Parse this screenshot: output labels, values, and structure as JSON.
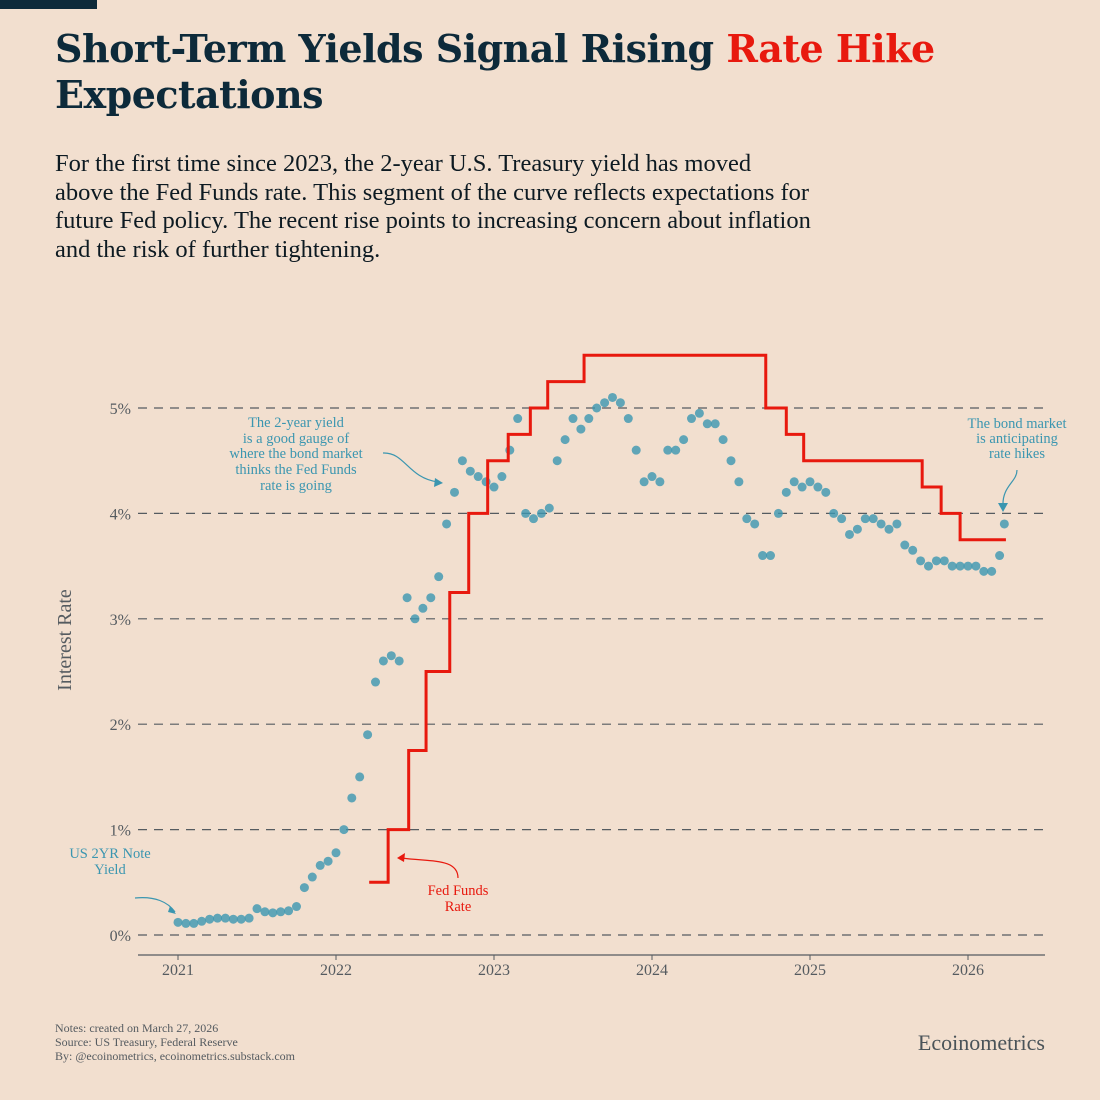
{
  "header": {
    "title_part1": "Short-Term Yields Signal Rising ",
    "title_highlight": "Rate Hike",
    "title_part2": "Expectations",
    "subtitle": "For the first time since 2023, the 2-year U.S. Treasury yield has moved above the Fed Funds rate. This segment of the curve reflects expectations for future Fed policy. The recent rise points to increasing concern about inflation and the risk of further tightening."
  },
  "colors": {
    "background": "#f2dfcf",
    "title": "#0d2a3a",
    "highlight": "#e8190e",
    "yield": "#3b96b0",
    "fed_funds": "#e8190e"
  },
  "chart_data": {
    "type": "scatter+step",
    "ylabel": "Interest Rate",
    "xlabel": "",
    "xlim": [
      2020.8,
      2026.5
    ],
    "ylim": [
      -0.2,
      5.6
    ],
    "x_ticks": [
      "2021",
      "2022",
      "2023",
      "2024",
      "2025",
      "2026"
    ],
    "y_ticks": [
      {
        "v": 0,
        "label": "0%"
      },
      {
        "v": 1,
        "label": "1%"
      },
      {
        "v": 2,
        "label": "2%"
      },
      {
        "v": 3,
        "label": "3%"
      },
      {
        "v": 4,
        "label": "4%"
      },
      {
        "v": 5,
        "label": "5%"
      }
    ],
    "grid": "horizontal dashed",
    "series": [
      {
        "name": "US 2YR Note Yield",
        "type": "scatter",
        "color": "#3b96b0",
        "points": [
          [
            2021.0,
            0.12
          ],
          [
            2021.05,
            0.11
          ],
          [
            2021.1,
            0.11
          ],
          [
            2021.15,
            0.13
          ],
          [
            2021.2,
            0.15
          ],
          [
            2021.25,
            0.16
          ],
          [
            2021.3,
            0.16
          ],
          [
            2021.35,
            0.15
          ],
          [
            2021.4,
            0.15
          ],
          [
            2021.45,
            0.16
          ],
          [
            2021.5,
            0.25
          ],
          [
            2021.55,
            0.22
          ],
          [
            2021.6,
            0.21
          ],
          [
            2021.65,
            0.22
          ],
          [
            2021.7,
            0.23
          ],
          [
            2021.75,
            0.27
          ],
          [
            2021.8,
            0.45
          ],
          [
            2021.85,
            0.55
          ],
          [
            2021.9,
            0.66
          ],
          [
            2021.95,
            0.7
          ],
          [
            2022.0,
            0.78
          ],
          [
            2022.05,
            1.0
          ],
          [
            2022.1,
            1.3
          ],
          [
            2022.15,
            1.5
          ],
          [
            2022.2,
            1.9
          ],
          [
            2022.25,
            2.4
          ],
          [
            2022.3,
            2.6
          ],
          [
            2022.35,
            2.65
          ],
          [
            2022.4,
            2.6
          ],
          [
            2022.45,
            3.2
          ],
          [
            2022.5,
            3.0
          ],
          [
            2022.55,
            3.1
          ],
          [
            2022.6,
            3.2
          ],
          [
            2022.65,
            3.4
          ],
          [
            2022.7,
            3.9
          ],
          [
            2022.75,
            4.2
          ],
          [
            2022.8,
            4.5
          ],
          [
            2022.85,
            4.4
          ],
          [
            2022.9,
            4.35
          ],
          [
            2022.95,
            4.3
          ],
          [
            2023.0,
            4.25
          ],
          [
            2023.05,
            4.35
          ],
          [
            2023.1,
            4.6
          ],
          [
            2023.15,
            4.9
          ],
          [
            2023.2,
            4.0
          ],
          [
            2023.25,
            3.95
          ],
          [
            2023.3,
            4.0
          ],
          [
            2023.35,
            4.05
          ],
          [
            2023.4,
            4.5
          ],
          [
            2023.45,
            4.7
          ],
          [
            2023.5,
            4.9
          ],
          [
            2023.55,
            4.8
          ],
          [
            2023.6,
            4.9
          ],
          [
            2023.65,
            5.0
          ],
          [
            2023.7,
            5.05
          ],
          [
            2023.75,
            5.1
          ],
          [
            2023.8,
            5.05
          ],
          [
            2023.85,
            4.9
          ],
          [
            2023.9,
            4.6
          ],
          [
            2023.95,
            4.3
          ],
          [
            2024.0,
            4.35
          ],
          [
            2024.05,
            4.3
          ],
          [
            2024.1,
            4.6
          ],
          [
            2024.15,
            4.6
          ],
          [
            2024.2,
            4.7
          ],
          [
            2024.25,
            4.9
          ],
          [
            2024.3,
            4.95
          ],
          [
            2024.35,
            4.85
          ],
          [
            2024.4,
            4.85
          ],
          [
            2024.45,
            4.7
          ],
          [
            2024.5,
            4.5
          ],
          [
            2024.55,
            4.3
          ],
          [
            2024.6,
            3.95
          ],
          [
            2024.65,
            3.9
          ],
          [
            2024.7,
            3.6
          ],
          [
            2024.75,
            3.6
          ],
          [
            2024.8,
            4.0
          ],
          [
            2024.85,
            4.2
          ],
          [
            2024.9,
            4.3
          ],
          [
            2024.95,
            4.25
          ],
          [
            2025.0,
            4.3
          ],
          [
            2025.05,
            4.25
          ],
          [
            2025.1,
            4.2
          ],
          [
            2025.15,
            4.0
          ],
          [
            2025.2,
            3.95
          ],
          [
            2025.25,
            3.8
          ],
          [
            2025.3,
            3.85
          ],
          [
            2025.35,
            3.95
          ],
          [
            2025.4,
            3.95
          ],
          [
            2025.45,
            3.9
          ],
          [
            2025.5,
            3.85
          ],
          [
            2025.55,
            3.9
          ],
          [
            2025.6,
            3.7
          ],
          [
            2025.65,
            3.65
          ],
          [
            2025.7,
            3.55
          ],
          [
            2025.75,
            3.5
          ],
          [
            2025.8,
            3.55
          ],
          [
            2025.85,
            3.55
          ],
          [
            2025.9,
            3.5
          ],
          [
            2025.95,
            3.5
          ],
          [
            2026.0,
            3.5
          ],
          [
            2026.05,
            3.5
          ],
          [
            2026.1,
            3.45
          ],
          [
            2026.15,
            3.45
          ],
          [
            2026.2,
            3.6
          ],
          [
            2026.23,
            3.9
          ]
        ]
      },
      {
        "name": "Fed Funds Rate",
        "type": "step",
        "color": "#e8190e",
        "steps": [
          [
            2022.21,
            0.5
          ],
          [
            2022.33,
            1.0
          ],
          [
            2022.46,
            1.75
          ],
          [
            2022.57,
            2.5
          ],
          [
            2022.72,
            3.25
          ],
          [
            2022.84,
            4.0
          ],
          [
            2022.96,
            4.5
          ],
          [
            2023.09,
            4.75
          ],
          [
            2023.23,
            5.0
          ],
          [
            2023.34,
            5.25
          ],
          [
            2023.57,
            5.5
          ],
          [
            2024.72,
            5.0
          ],
          [
            2024.85,
            4.75
          ],
          [
            2024.96,
            4.5
          ],
          [
            2025.71,
            4.25
          ],
          [
            2025.83,
            4.0
          ],
          [
            2025.95,
            3.75
          ],
          [
            2026.24,
            3.75
          ]
        ]
      }
    ],
    "annotations": {
      "yield_label": [
        "US 2YR Note",
        "Yield"
      ],
      "fed_label": [
        "Fed  Funds",
        "Rate"
      ],
      "gauge_note": [
        "The 2-year yield",
        "is a good gauge of",
        "where the bond market",
        "thinks the Fed Funds",
        "rate is going"
      ],
      "hike_note": [
        "The bond market",
        "is anticipating",
        "rate hikes"
      ]
    }
  },
  "footer": {
    "notes": "Notes: created on March 27, 2026",
    "source": "Source: US Treasury, Federal Reserve",
    "by": "By: @ecoinometrics, ecoinometrics.substack.com",
    "brand": "Ecoinometrics"
  }
}
